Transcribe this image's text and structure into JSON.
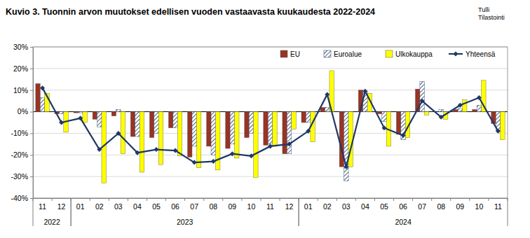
{
  "chart_data": {
    "type": "bar",
    "title": "Kuvio 3. Tuonnin arvon muutokset edellisen vuoden vastaavasta kuukaudesta 2022-2024",
    "annotations": [
      "Tulli",
      "Tilastointi"
    ],
    "categories": [
      "11",
      "12",
      "01",
      "02",
      "03",
      "04",
      "05",
      "06",
      "07",
      "08",
      "09",
      "10",
      "11",
      "12",
      "01",
      "02",
      "03",
      "04",
      "05",
      "06",
      "07",
      "08",
      "09",
      "10",
      "11"
    ],
    "category_groups": [
      {
        "label": "2022",
        "count": 2
      },
      {
        "label": "2023",
        "count": 12
      },
      {
        "label": "2024",
        "count": 11
      }
    ],
    "series": [
      {
        "name": "EU",
        "type": "bar",
        "color": "#993322",
        "values": [
          13,
          -1,
          -0.5,
          -3.5,
          -2,
          -11.5,
          -12,
          -7.5,
          -21,
          -16,
          -17,
          -12,
          -15.5,
          -19.5,
          -5,
          2,
          -25.5,
          10,
          -1,
          -10.5,
          10.5,
          0,
          1,
          1,
          -5.5
        ]
      },
      {
        "name": "Euroalue",
        "type": "bar",
        "color": "#1f3864",
        "marker": "hatch",
        "values": [
          6.5,
          -1,
          -0.5,
          -7,
          1,
          -11.5,
          -10,
          -7.5,
          -16,
          -20,
          -15,
          -10,
          -15,
          -19.5,
          -5,
          2,
          -32,
          9.5,
          -4.5,
          -13,
          14,
          1,
          1.5,
          3,
          -9
        ]
      },
      {
        "name": "Ulkokauppa",
        "type": "bar",
        "color": "#ffff00",
        "values": [
          8.5,
          -9.5,
          -5,
          -33,
          -19.5,
          -28,
          -24.5,
          -20.5,
          -26,
          -27,
          -21.5,
          -30.5,
          -16,
          -8,
          -14,
          19,
          -25.5,
          8.5,
          -16,
          -12,
          -1.5,
          -3.5,
          5.5,
          14.5,
          -13
        ]
      },
      {
        "name": "Yhteensä",
        "type": "line",
        "color": "#1f3864",
        "marker": "diamond",
        "line_style": "solid",
        "values": [
          11,
          -5,
          -3,
          -17.5,
          -10,
          -19,
          -17.5,
          -18,
          -23.5,
          -23,
          -19.5,
          -20.5,
          -16,
          -15,
          -9,
          8,
          -25.5,
          9.5,
          -7.5,
          -11,
          5,
          -2.5,
          3,
          6.5,
          -9
        ]
      }
    ],
    "ylim": [
      -40,
      30
    ],
    "yticks": [
      {
        "value": -40,
        "label": "-40%"
      },
      {
        "value": -30,
        "label": "-30%"
      },
      {
        "value": -20,
        "label": "-20%"
      },
      {
        "value": -10,
        "label": "-10%"
      },
      {
        "value": 0,
        "label": "0%"
      },
      {
        "value": 10,
        "label": "10%"
      },
      {
        "value": 20,
        "label": "20%"
      },
      {
        "value": 30,
        "label": "30%"
      }
    ],
    "grid": true,
    "legend": "top-right"
  }
}
